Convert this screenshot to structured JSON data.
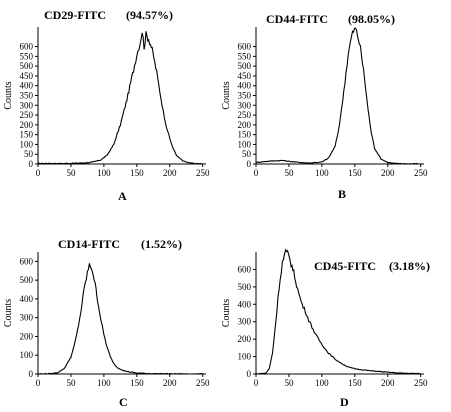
{
  "chart_data": [
    {
      "type": "line",
      "panel_label": "A",
      "title": "CD29-FITC",
      "percent": "(94.57%)",
      "ylabel": "Counts",
      "xlabel": "",
      "xlim": [
        0,
        255
      ],
      "ylim": [
        0,
        700
      ],
      "x_ticks": [
        0,
        50,
        100,
        150,
        200,
        250
      ],
      "y_ticks": [
        0,
        50,
        100,
        150,
        200,
        250,
        300,
        350,
        400,
        450,
        500,
        550,
        600
      ],
      "grid": false,
      "x": [
        0,
        20,
        40,
        60,
        80,
        95,
        105,
        115,
        125,
        135,
        145,
        150,
        155,
        158,
        161,
        164,
        168,
        172,
        176,
        180,
        185,
        190,
        195,
        200,
        205,
        210,
        220,
        230,
        240,
        250
      ],
      "y": [
        3,
        3,
        3,
        4,
        8,
        20,
        45,
        100,
        200,
        330,
        480,
        560,
        620,
        680,
        600,
        660,
        640,
        600,
        540,
        470,
        370,
        270,
        190,
        130,
        80,
        45,
        15,
        5,
        2,
        1
      ]
    },
    {
      "type": "line",
      "panel_label": "B",
      "title": "CD44-FITC",
      "percent": "(98.05%)",
      "ylabel": "Counts",
      "xlabel": "",
      "xlim": [
        0,
        255
      ],
      "ylim": [
        0,
        700
      ],
      "x_ticks": [
        0,
        50,
        100,
        150,
        200,
        250
      ],
      "y_ticks": [
        0,
        50,
        100,
        150,
        200,
        250,
        300,
        350,
        400,
        450,
        500,
        550,
        600
      ],
      "grid": false,
      "x": [
        0,
        20,
        40,
        60,
        80,
        100,
        110,
        120,
        125,
        130,
        135,
        140,
        145,
        148,
        151,
        154,
        157,
        160,
        165,
        170,
        175,
        180,
        190,
        200,
        210,
        220,
        230,
        250
      ],
      "y": [
        8,
        15,
        18,
        10,
        5,
        10,
        30,
        90,
        170,
        280,
        420,
        560,
        650,
        680,
        690,
        660,
        620,
        560,
        430,
        280,
        160,
        80,
        25,
        8,
        3,
        2,
        1,
        1
      ]
    },
    {
      "type": "line",
      "panel_label": "C",
      "title": "CD14-FITC",
      "percent": "(1.52%)",
      "ylabel": "Counts",
      "xlabel": "",
      "xlim": [
        0,
        255
      ],
      "ylim": [
        0,
        650
      ],
      "x_ticks": [
        0,
        50,
        100,
        150,
        200,
        250
      ],
      "y_ticks": [
        0,
        100,
        200,
        300,
        400,
        500,
        600
      ],
      "grid": false,
      "x": [
        0,
        20,
        30,
        40,
        50,
        55,
        60,
        65,
        70,
        75,
        78,
        81,
        84,
        88,
        92,
        96,
        100,
        105,
        110,
        115,
        120,
        130,
        140,
        150,
        170,
        200,
        250
      ],
      "y": [
        0,
        2,
        8,
        30,
        90,
        150,
        230,
        330,
        450,
        540,
        575,
        570,
        530,
        450,
        360,
        280,
        210,
        140,
        90,
        55,
        35,
        18,
        10,
        5,
        2,
        1,
        0
      ]
    },
    {
      "type": "line",
      "panel_label": "D",
      "title": "CD45-FITC",
      "percent": "(3.18%)",
      "ylabel": "Counts",
      "xlabel": "",
      "xlim": [
        0,
        255
      ],
      "ylim": [
        0,
        700
      ],
      "x_ticks": [
        0,
        50,
        100,
        150,
        200,
        250
      ],
      "y_ticks": [
        0,
        100,
        200,
        300,
        400,
        500,
        600
      ],
      "grid": false,
      "x": [
        0,
        15,
        20,
        25,
        30,
        35,
        40,
        45,
        48,
        52,
        56,
        60,
        65,
        70,
        75,
        80,
        85,
        90,
        100,
        110,
        120,
        130,
        140,
        150,
        170,
        200,
        220,
        250
      ],
      "y": [
        0,
        5,
        30,
        120,
        300,
        500,
        640,
        700,
        690,
        650,
        600,
        540,
        460,
        400,
        360,
        310,
        270,
        230,
        170,
        120,
        85,
        60,
        40,
        30,
        20,
        10,
        5,
        2
      ]
    }
  ]
}
